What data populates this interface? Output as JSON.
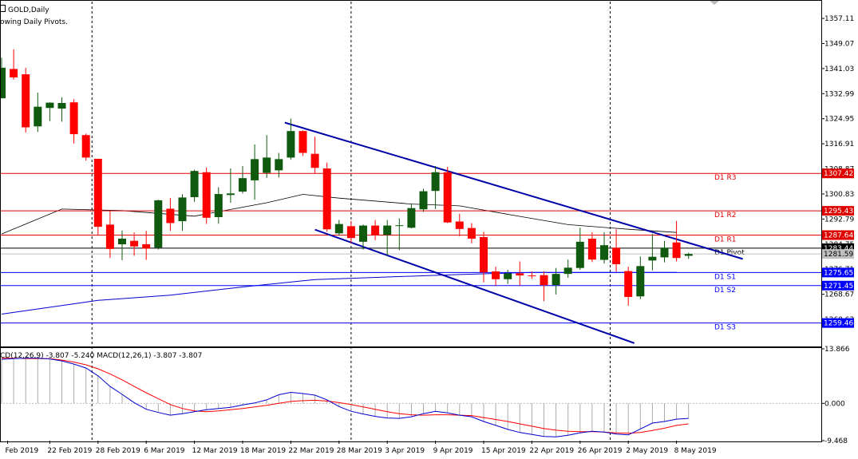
{
  "header": {
    "symbol": "GOLD,Daily",
    "indicator_note": "owing Daily Pivots."
  },
  "macd_label": "CD(12,26,9) -3.807 -5.240 MACD(12,26,1) -3.807 -3.807",
  "colors": {
    "background": "#ffffff",
    "bull_candle": "#0f5a0f",
    "bear_candle": "#ff0000",
    "pivot_resistance": "#e00000",
    "pivot_support": "#0000ff",
    "trendline": "#0000a8",
    "ma_slow": "#0000cc",
    "ma_fast": "#000000",
    "macd_hist": "#aaaaaa",
    "signal": "#0000cc",
    "macd_line": "#ff0000"
  },
  "chart_data": [
    {
      "type": "candlestick",
      "title": "GOLD,Daily",
      "ylim": [
        1252.2,
        1362.5
      ],
      "y_ticks": [
        1357.11,
        1349.07,
        1341.03,
        1332.99,
        1324.95,
        1316.91,
        1308.87,
        1300.83,
        1292.79,
        1284.75,
        1276.71,
        1268.67,
        1260.63
      ],
      "y_tick_labels": [
        "1357.11",
        "1349.07",
        "1341.03",
        "1332.99",
        "1324.95",
        "1316.91",
        "1308.87",
        "1300.83",
        "1292.79",
        "1284.75",
        "1276.71",
        "1268.67",
        "1260.63"
      ],
      "x_labels": [
        {
          "i": 0.5,
          "label": "Feb 2019"
        },
        {
          "i": 4,
          "label": "22 Feb 2019"
        },
        {
          "i": 8,
          "label": "28 Feb 2019"
        },
        {
          "i": 12,
          "label": "6 Mar 2019"
        },
        {
          "i": 16,
          "label": "12 Mar 2019"
        },
        {
          "i": 20,
          "label": "18 Mar 2019"
        },
        {
          "i": 24,
          "label": "22 Mar 2019"
        },
        {
          "i": 28,
          "label": "28 Mar 2019"
        },
        {
          "i": 32,
          "label": "3 Apr 2019"
        },
        {
          "i": 36,
          "label": "9 Apr 2019"
        },
        {
          "i": 40,
          "label": "15 Apr 2019"
        },
        {
          "i": 44,
          "label": "22 Apr 2019"
        },
        {
          "i": 48,
          "label": "26 Apr 2019"
        },
        {
          "i": 52,
          "label": "2 May 2019"
        },
        {
          "i": 56,
          "label": "8 May 2019"
        }
      ],
      "period_separators": [
        7.5,
        29,
        50.5
      ],
      "candles": [
        {
          "o": 1331.5,
          "h": 1344.5,
          "l": 1331.5,
          "c": 1341.3
        },
        {
          "o": 1340.9,
          "h": 1347.2,
          "l": 1337.5,
          "c": 1338.2
        },
        {
          "o": 1339.2,
          "h": 1341.3,
          "l": 1320.5,
          "c": 1322.2
        },
        {
          "o": 1322.5,
          "h": 1333.3,
          "l": 1320.7,
          "c": 1328.8
        },
        {
          "o": 1328.4,
          "h": 1330.2,
          "l": 1324.2,
          "c": 1330.1
        },
        {
          "o": 1328.2,
          "h": 1331.8,
          "l": 1324.0,
          "c": 1330.0
        },
        {
          "o": 1330.2,
          "h": 1331.2,
          "l": 1317.0,
          "c": 1320.0
        },
        {
          "o": 1319.7,
          "h": 1320.2,
          "l": 1311.5,
          "c": 1312.5
        },
        {
          "o": 1312.1,
          "h": 1312.1,
          "l": 1287.5,
          "c": 1290.3
        },
        {
          "o": 1291.0,
          "h": 1295.3,
          "l": 1280.3,
          "c": 1283.2
        },
        {
          "o": 1284.7,
          "h": 1289.1,
          "l": 1279.6,
          "c": 1286.5
        },
        {
          "o": 1285.8,
          "h": 1288.5,
          "l": 1281.0,
          "c": 1284.0
        },
        {
          "o": 1284.7,
          "h": 1289.0,
          "l": 1279.7,
          "c": 1283.3
        },
        {
          "o": 1283.6,
          "h": 1299.0,
          "l": 1283.0,
          "c": 1298.8
        },
        {
          "o": 1296.1,
          "h": 1299.5,
          "l": 1289.0,
          "c": 1291.5
        },
        {
          "o": 1292.1,
          "h": 1300.8,
          "l": 1289.0,
          "c": 1299.7
        },
        {
          "o": 1299.8,
          "h": 1308.6,
          "l": 1298.3,
          "c": 1308.2
        },
        {
          "o": 1307.8,
          "h": 1309.3,
          "l": 1291.2,
          "c": 1293.2
        },
        {
          "o": 1293.4,
          "h": 1303.0,
          "l": 1291.3,
          "c": 1300.8
        },
        {
          "o": 1300.5,
          "h": 1309.0,
          "l": 1298.0,
          "c": 1301.0
        },
        {
          "o": 1301.6,
          "h": 1309.8,
          "l": 1301.0,
          "c": 1305.9
        },
        {
          "o": 1305.2,
          "h": 1316.7,
          "l": 1299.0,
          "c": 1312.0
        },
        {
          "o": 1307.6,
          "h": 1319.7,
          "l": 1306.0,
          "c": 1312.5
        },
        {
          "o": 1308.4,
          "h": 1314.0,
          "l": 1306.1,
          "c": 1312.0
        },
        {
          "o": 1312.5,
          "h": 1325.0,
          "l": 1311.8,
          "c": 1321.0
        },
        {
          "o": 1321.0,
          "h": 1321.2,
          "l": 1313.0,
          "c": 1314.0
        },
        {
          "o": 1313.7,
          "h": 1319.2,
          "l": 1307.4,
          "c": 1309.2
        },
        {
          "o": 1309.0,
          "h": 1310.9,
          "l": 1288.7,
          "c": 1289.5
        },
        {
          "o": 1288.2,
          "h": 1292.5,
          "l": 1287.5,
          "c": 1291.2
        },
        {
          "o": 1290.5,
          "h": 1292.2,
          "l": 1285.0,
          "c": 1286.7
        },
        {
          "o": 1285.5,
          "h": 1291.0,
          "l": 1283.0,
          "c": 1290.7
        },
        {
          "o": 1290.7,
          "h": 1292.5,
          "l": 1286.0,
          "c": 1287.7
        },
        {
          "o": 1287.7,
          "h": 1292.5,
          "l": 1281.0,
          "c": 1290.7
        },
        {
          "o": 1290.7,
          "h": 1293.0,
          "l": 1282.8,
          "c": 1290.8
        },
        {
          "o": 1290.0,
          "h": 1297.8,
          "l": 1289.8,
          "c": 1296.3
        },
        {
          "o": 1295.9,
          "h": 1302.5,
          "l": 1295.1,
          "c": 1301.7
        },
        {
          "o": 1301.8,
          "h": 1309.8,
          "l": 1296.0,
          "c": 1307.8
        },
        {
          "o": 1307.8,
          "h": 1309.5,
          "l": 1291.5,
          "c": 1291.7
        },
        {
          "o": 1292.0,
          "h": 1294.5,
          "l": 1287.2,
          "c": 1289.6
        },
        {
          "o": 1289.9,
          "h": 1291.5,
          "l": 1285.0,
          "c": 1286.5
        },
        {
          "o": 1287.0,
          "h": 1288.7,
          "l": 1272.5,
          "c": 1275.7
        },
        {
          "o": 1276.0,
          "h": 1277.5,
          "l": 1271.5,
          "c": 1273.5
        },
        {
          "o": 1273.5,
          "h": 1276.5,
          "l": 1272.0,
          "c": 1275.4
        },
        {
          "o": 1275.4,
          "h": 1279.2,
          "l": 1271.5,
          "c": 1274.7
        },
        {
          "o": 1274.7,
          "h": 1276.0,
          "l": 1273.6,
          "c": 1274.6
        },
        {
          "o": 1274.8,
          "h": 1276.0,
          "l": 1266.5,
          "c": 1271.6
        },
        {
          "o": 1271.6,
          "h": 1277.1,
          "l": 1268.6,
          "c": 1275.2
        },
        {
          "o": 1275.2,
          "h": 1279.8,
          "l": 1274.0,
          "c": 1277.2
        },
        {
          "o": 1277.1,
          "h": 1290.0,
          "l": 1276.5,
          "c": 1285.5
        },
        {
          "o": 1286.5,
          "h": 1288.6,
          "l": 1279.0,
          "c": 1279.8
        },
        {
          "o": 1279.7,
          "h": 1288.6,
          "l": 1278.5,
          "c": 1284.4
        },
        {
          "o": 1283.6,
          "h": 1289.5,
          "l": 1275.9,
          "c": 1278.3
        },
        {
          "o": 1276.1,
          "h": 1277.5,
          "l": 1265.0,
          "c": 1267.8
        },
        {
          "o": 1268.0,
          "h": 1280.8,
          "l": 1267.1,
          "c": 1277.7
        },
        {
          "o": 1279.5,
          "h": 1288.0,
          "l": 1276.3,
          "c": 1280.7
        },
        {
          "o": 1280.5,
          "h": 1285.8,
          "l": 1278.9,
          "c": 1283.6
        },
        {
          "o": 1285.3,
          "h": 1292.2,
          "l": 1279.2,
          "c": 1280.3
        },
        {
          "o": 1281.0,
          "h": 1282.0,
          "l": 1280.0,
          "c": 1281.6
        }
      ],
      "pivot_levels": [
        {
          "label": "D1 R3",
          "value": 1307.42,
          "tag": "1307.42",
          "kind": "resistance"
        },
        {
          "label": "D1 R2",
          "value": 1295.43,
          "tag": "1295.43",
          "kind": "resistance"
        },
        {
          "label": "D1 R1",
          "value": 1287.64,
          "tag": "1287.64",
          "kind": "resistance"
        },
        {
          "label": "D1 Pivot",
          "value": 1283.44,
          "tag": "1283.44",
          "kind": "pivot"
        },
        {
          "label": "D1 S1",
          "value": 1275.65,
          "tag": "1275.65",
          "kind": "support"
        },
        {
          "label": "D1 S2",
          "value": 1271.45,
          "tag": "1271.45",
          "kind": "support"
        },
        {
          "label": "D1 S3",
          "value": 1259.46,
          "tag": "1259.46",
          "kind": "support"
        }
      ],
      "current_price": {
        "value": 1281.59,
        "tag": "1281.59"
      },
      "trendlines": [
        {
          "x1": 23.5,
          "y1": 1323.7,
          "x2": 61.5,
          "y2": 1280.0
        },
        {
          "x1": 26.0,
          "y1": 1289.4,
          "x2": 52.5,
          "y2": 1253.0
        }
      ],
      "ma_slow": [
        [
          0,
          1262.3
        ],
        [
          8,
          1266.7
        ],
        [
          14,
          1268.4
        ],
        [
          20,
          1271.0
        ],
        [
          26,
          1273.4
        ],
        [
          32,
          1274.2
        ],
        [
          38,
          1275.0
        ],
        [
          44,
          1275.7
        ],
        [
          50,
          1275.7
        ],
        [
          56,
          1275.7
        ]
      ],
      "ma_fast": [
        [
          0,
          1288.0
        ],
        [
          5,
          1296.0
        ],
        [
          10,
          1295.5
        ],
        [
          16,
          1293.7
        ],
        [
          22,
          1298.0
        ],
        [
          25,
          1300.7
        ],
        [
          28,
          1299.5
        ],
        [
          34,
          1297.6
        ],
        [
          38,
          1297.0
        ],
        [
          42,
          1294.3
        ],
        [
          47,
          1291.0
        ],
        [
          52,
          1289.5
        ],
        [
          56,
          1288.5
        ]
      ]
    },
    {
      "type": "line",
      "title": "CD(12,26,9) -3.807 -5.240 MACD(12,26,1) -3.807 -3.807",
      "ylim": [
        -9.468,
        13.866
      ],
      "y_ticks": [
        13.866,
        0.0,
        -9.468
      ],
      "y_tick_labels": [
        "13.866",
        "0.000",
        "-9.468"
      ],
      "series": [
        {
          "type": "bar",
          "values": [
            11.2,
            11.4,
            11.5,
            11.5,
            11.3,
            10.8,
            10.0,
            9.0,
            7.0,
            4.3,
            2.3,
            0.2,
            -1.5,
            -2.3,
            -3.0,
            -2.6,
            -2.1,
            -1.6,
            -1.3,
            -1.0,
            -0.4,
            0.1,
            0.9,
            2.2,
            2.8,
            2.5,
            2.1,
            0.9,
            -0.8,
            -2.0,
            -2.7,
            -3.3,
            -3.7,
            -3.8,
            -3.4,
            -2.6,
            -2.0,
            -2.4,
            -3.0,
            -3.4,
            -4.6,
            -5.6,
            -6.6,
            -7.4,
            -7.9,
            -8.4,
            -8.5,
            -8.1,
            -7.5,
            -7.1,
            -7.3,
            -7.8,
            -8.0,
            -6.5,
            -5.0,
            -4.6,
            -4.0,
            -3.8
          ]
        },
        {
          "values": [
            11.2,
            11.4,
            11.5,
            11.5,
            11.3,
            10.8,
            10.0,
            9.0,
            7.0,
            4.3,
            2.3,
            0.2,
            -1.5,
            -2.3,
            -3.0,
            -2.6,
            -2.1,
            -1.6,
            -1.3,
            -1.0,
            -0.4,
            0.1,
            0.9,
            2.2,
            2.8,
            2.5,
            2.1,
            0.9,
            -0.8,
            -2.0,
            -2.7,
            -3.3,
            -3.7,
            -3.8,
            -3.4,
            -2.6,
            -2.0,
            -2.4,
            -3.0,
            -3.4,
            -4.6,
            -5.6,
            -6.6,
            -7.4,
            -7.9,
            -8.4,
            -8.5,
            -8.1,
            -7.5,
            -7.1,
            -7.3,
            -7.8,
            -8.0,
            -6.5,
            -5.0,
            -4.6,
            -4.0,
            -3.8
          ]
        },
        {
          "values": [
            11.5,
            11.5,
            11.4,
            11.4,
            11.4,
            11.0,
            10.5,
            9.8,
            8.8,
            7.5,
            6.0,
            4.3,
            2.7,
            1.2,
            -0.3,
            -1.3,
            -1.9,
            -2.1,
            -1.9,
            -1.6,
            -1.3,
            -0.9,
            -0.5,
            0.0,
            0.5,
            0.7,
            0.8,
            0.6,
            0.2,
            -0.3,
            -0.9,
            -1.5,
            -2.1,
            -2.6,
            -2.9,
            -3.0,
            -2.9,
            -2.9,
            -3.0,
            -3.1,
            -3.6,
            -4.1,
            -4.6,
            -5.2,
            -5.8,
            -6.4,
            -6.8,
            -7.1,
            -7.2,
            -7.2,
            -7.3,
            -7.5,
            -7.6,
            -7.4,
            -6.9,
            -6.3,
            -5.6,
            -5.2
          ]
        }
      ]
    }
  ]
}
